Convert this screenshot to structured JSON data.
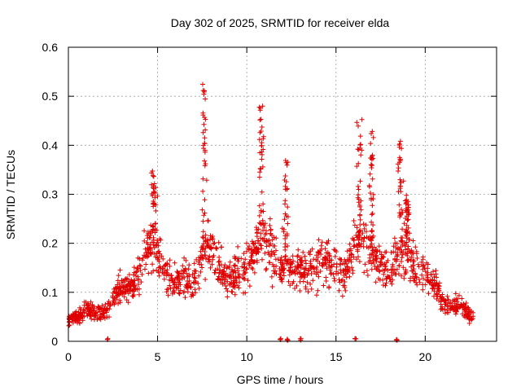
{
  "chart_data": {
    "type": "scatter",
    "title": "Day 302 of 2025, SRMTID for receiver elda",
    "xlabel": "GPS time / hours",
    "ylabel": "SRMTID / TECUs",
    "xlim": [
      0,
      24
    ],
    "ylim": [
      0,
      0.6
    ],
    "xticks": [
      0,
      5,
      10,
      15,
      20
    ],
    "yticks": [
      0,
      0.1,
      0.2,
      0.3,
      0.4,
      0.5,
      0.6
    ],
    "xtick_labels": [
      "0",
      "5",
      "10",
      "15",
      "20"
    ],
    "ytick_labels": [
      "0",
      "0.1",
      "0.2",
      "0.3",
      "0.4",
      "0.5",
      "0.6"
    ],
    "grid": true,
    "marker": "+",
    "color": "#e00000",
    "profile": [
      [
        0.0,
        0.04
      ],
      [
        0.5,
        0.05
      ],
      [
        1.0,
        0.065
      ],
      [
        1.5,
        0.06
      ],
      [
        2.0,
        0.055
      ],
      [
        2.5,
        0.09
      ],
      [
        3.0,
        0.11
      ],
      [
        3.5,
        0.105
      ],
      [
        4.0,
        0.14
      ],
      [
        4.5,
        0.2
      ],
      [
        5.0,
        0.19
      ],
      [
        5.5,
        0.14
      ],
      [
        6.0,
        0.12
      ],
      [
        6.5,
        0.13
      ],
      [
        7.0,
        0.12
      ],
      [
        7.5,
        0.18
      ],
      [
        8.0,
        0.2
      ],
      [
        8.5,
        0.15
      ],
      [
        9.0,
        0.13
      ],
      [
        9.5,
        0.14
      ],
      [
        10.0,
        0.15
      ],
      [
        10.5,
        0.18
      ],
      [
        11.0,
        0.22
      ],
      [
        11.5,
        0.17
      ],
      [
        12.0,
        0.15
      ],
      [
        12.5,
        0.14
      ],
      [
        13.0,
        0.15
      ],
      [
        13.5,
        0.14
      ],
      [
        14.0,
        0.17
      ],
      [
        14.5,
        0.16
      ],
      [
        15.0,
        0.16
      ],
      [
        15.5,
        0.13
      ],
      [
        16.0,
        0.19
      ],
      [
        16.5,
        0.21
      ],
      [
        17.0,
        0.18
      ],
      [
        17.5,
        0.16
      ],
      [
        18.0,
        0.14
      ],
      [
        18.5,
        0.17
      ],
      [
        19.0,
        0.18
      ],
      [
        19.5,
        0.15
      ],
      [
        20.0,
        0.14
      ],
      [
        20.5,
        0.12
      ],
      [
        21.0,
        0.08
      ],
      [
        21.5,
        0.07
      ],
      [
        22.0,
        0.08
      ],
      [
        22.5,
        0.05
      ],
      [
        22.7,
        0.05
      ]
    ],
    "peaks": [
      {
        "x": 4.8,
        "y": 0.35
      },
      {
        "x": 7.6,
        "y": 0.53
      },
      {
        "x": 10.8,
        "y": 0.48
      },
      {
        "x": 12.2,
        "y": 0.37
      },
      {
        "x": 16.3,
        "y": 0.46
      },
      {
        "x": 17.0,
        "y": 0.43
      },
      {
        "x": 18.6,
        "y": 0.41
      },
      {
        "x": 19.0,
        "y": 0.3
      }
    ],
    "zero_marks": [
      2.2,
      11.9,
      12.3,
      13.0,
      16.1,
      18.4
    ]
  }
}
